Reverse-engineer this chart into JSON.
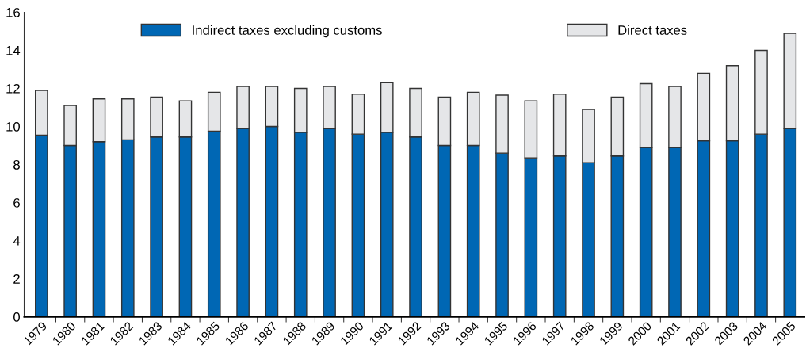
{
  "chart_data": {
    "type": "bar",
    "stacked": true,
    "categories": [
      "1979",
      "1980",
      "1981",
      "1982",
      "1983",
      "1984",
      "1985",
      "1986",
      "1987",
      "1988",
      "1989",
      "1990",
      "1991",
      "1992",
      "1993",
      "1994",
      "1995",
      "1996",
      "1997",
      "1998",
      "1999",
      "2000",
      "2001",
      "2002",
      "2003",
      "2004",
      "2005"
    ],
    "series": [
      {
        "name": "Indirect taxes excluding customs",
        "color": "#0067b4",
        "values": [
          9.55,
          9.0,
          9.2,
          9.3,
          9.45,
          9.45,
          9.75,
          9.9,
          10.0,
          9.7,
          9.9,
          9.6,
          9.7,
          9.45,
          9.0,
          9.0,
          8.6,
          8.35,
          8.45,
          8.1,
          8.45,
          8.9,
          8.9,
          9.25,
          9.25,
          9.6,
          9.9
        ]
      },
      {
        "name": "Direct taxes",
        "color": "#e5e6e8",
        "values": [
          2.35,
          2.1,
          2.25,
          2.15,
          2.1,
          1.9,
          2.05,
          2.2,
          2.1,
          2.3,
          2.2,
          2.1,
          2.6,
          2.55,
          2.55,
          2.8,
          3.05,
          3.0,
          3.25,
          2.8,
          3.1,
          3.35,
          3.2,
          3.55,
          3.95,
          4.4,
          5.0
        ]
      }
    ],
    "ylim": [
      0,
      16
    ],
    "yticks": [
      0,
      2,
      4,
      6,
      8,
      10,
      12,
      14,
      16
    ],
    "grid": false,
    "legend": "top"
  }
}
